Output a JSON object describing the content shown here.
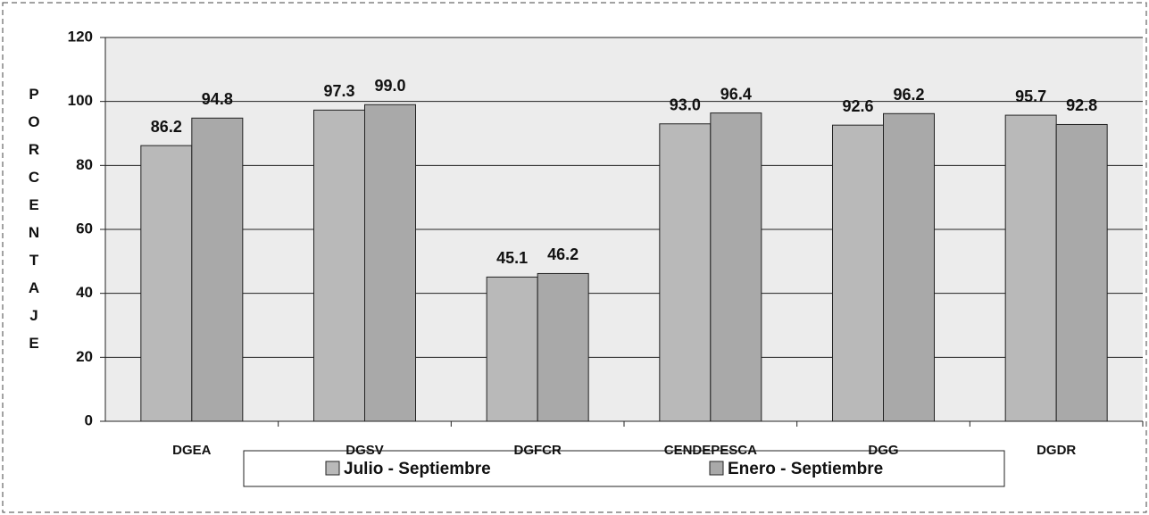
{
  "chart_data": {
    "type": "bar",
    "y_label": "PORCENTAJE",
    "categories": [
      "DGEA",
      "DGSV",
      "DGFCR",
      "CENDEPESCA",
      "DGG",
      "DGDR"
    ],
    "series": [
      {
        "name": "Julio - Septiembre",
        "color": "#b9b9b9",
        "values": [
          86.2,
          97.3,
          45.1,
          93.0,
          92.6,
          95.7
        ],
        "value_labels": [
          "86.2",
          "97.3",
          "45.1",
          "93.0",
          "92.6",
          "95.7"
        ]
      },
      {
        "name": "Enero - Septiembre",
        "color": "#a9a9a9",
        "values": [
          94.8,
          99.0,
          46.2,
          96.4,
          96.2,
          92.8
        ],
        "value_labels": [
          "94.8",
          "99.0",
          "46.2",
          "96.4",
          "96.2",
          "92.8"
        ]
      }
    ],
    "ylim": [
      0,
      120
    ],
    "yticks": [
      0,
      20,
      40,
      60,
      80,
      100,
      120
    ],
    "grid": true,
    "legend": "bottom"
  }
}
